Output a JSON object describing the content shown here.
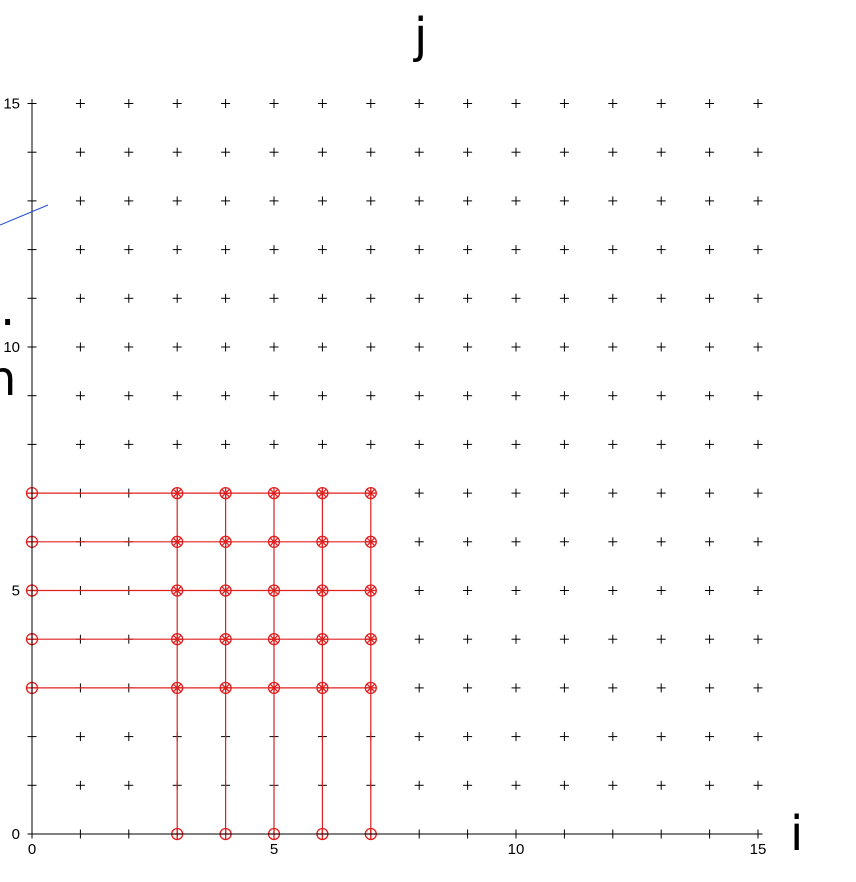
{
  "chart_data": {
    "type": "scatter",
    "xlabel": "i",
    "ylabel": "j",
    "xlim": [
      0,
      15
    ],
    "ylim": [
      0,
      15
    ],
    "x_ticks": [
      0,
      5,
      10,
      15
    ],
    "y_ticks": [
      0,
      5,
      10,
      15
    ],
    "grid_points": {
      "marker": "+",
      "color": "#000000",
      "x_range": [
        0,
        15
      ],
      "y_range": [
        0,
        15
      ],
      "step": 1
    },
    "highlight_series": {
      "color": "#e02020",
      "marker": "circle-x",
      "horizontal_line_j": [
        3,
        4,
        5,
        6,
        7
      ],
      "horizontal_line_i_range": [
        0,
        7
      ],
      "vertical_line_i": [
        3,
        4,
        5,
        6,
        7
      ],
      "vertical_line_j_range": [
        0,
        7
      ],
      "points_left_column": {
        "i": 0,
        "j": [
          3,
          4,
          5,
          6,
          7
        ]
      },
      "points_bottom_row": {
        "j": 0,
        "i": [
          3,
          4,
          5,
          6,
          7
        ]
      },
      "points_block": {
        "i": [
          3,
          4,
          5,
          6,
          7
        ],
        "j": [
          3,
          4,
          5,
          6,
          7
        ]
      }
    },
    "annotation_color": "#1f4fcf",
    "left_clip_text": [
      ".",
      "n"
    ]
  }
}
